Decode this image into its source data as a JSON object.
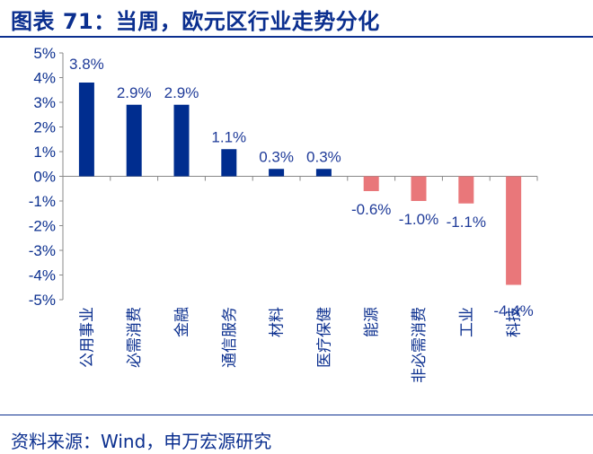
{
  "title": "图表 71：当周，欧元区行业走势分化",
  "source": "资料来源：Wind，申万宏源研究",
  "colors": {
    "positive": "#002d8f",
    "negative": "#e9777a",
    "axis": "#888888",
    "text": "#0b2f8f",
    "value_label": "#1f3b99"
  },
  "chart_data": {
    "type": "bar",
    "categories": [
      "公用事业",
      "必需消费",
      "金融",
      "通信服务",
      "材料",
      "医疗保健",
      "能源",
      "非必需消费",
      "工业",
      "科技"
    ],
    "values": [
      3.8,
      2.9,
      2.9,
      1.1,
      0.3,
      0.3,
      -0.6,
      -1.0,
      -1.1,
      -4.4
    ],
    "data_labels": [
      "3.8%",
      "2.9%",
      "2.9%",
      "1.1%",
      "0.3%",
      "0.3%",
      "-0.6%",
      "-1.0%",
      "-1.1%",
      "-4.4%"
    ],
    "ylim": [
      -5,
      5
    ],
    "yticks": [
      "5%",
      "4%",
      "3%",
      "2%",
      "1%",
      "0%",
      "-1%",
      "-2%",
      "-3%",
      "-4%",
      "-5%"
    ],
    "ytick_values": [
      5,
      4,
      3,
      2,
      1,
      0,
      -1,
      -2,
      -3,
      -4,
      -5
    ],
    "xlabel": "",
    "ylabel": "",
    "grid": false,
    "legend": "none"
  }
}
